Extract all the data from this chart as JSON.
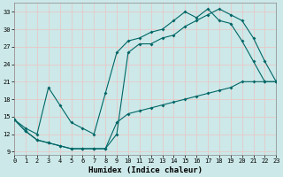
{
  "xlabel": "Humidex (Indice chaleur)",
  "bg_color": "#cce8e8",
  "line_color": "#006666",
  "grid_color": "#b8d8d8",
  "xlim": [
    0,
    23
  ],
  "ylim": [
    8.5,
    34.5
  ],
  "xticks": [
    0,
    1,
    2,
    3,
    4,
    5,
    6,
    7,
    8,
    9,
    10,
    11,
    12,
    13,
    14,
    15,
    16,
    17,
    18,
    19,
    20,
    21,
    22,
    23
  ],
  "yticks": [
    9,
    12,
    15,
    18,
    21,
    24,
    27,
    30,
    33
  ],
  "curve_high_x": [
    0,
    1,
    2,
    3,
    4,
    5,
    6,
    7,
    8,
    9,
    10,
    11,
    12,
    13,
    14,
    15,
    16,
    17,
    18,
    19,
    20,
    21,
    22,
    23
  ],
  "curve_high_y": [
    14.5,
    13.0,
    12.0,
    20.0,
    17.0,
    14.0,
    13.0,
    12.0,
    19.0,
    26.0,
    28.0,
    28.5,
    29.5,
    30.0,
    31.5,
    33.0,
    32.0,
    33.5,
    31.5,
    31.0,
    28.0,
    24.5,
    21.0,
    21.0
  ],
  "curve_mid_x": [
    0,
    1,
    2,
    3,
    4,
    5,
    6,
    7,
    8,
    9,
    10,
    11,
    12,
    13,
    14,
    15,
    16,
    17,
    18,
    19,
    20,
    21,
    22,
    23
  ],
  "curve_mid_y": [
    14.5,
    12.5,
    11.0,
    10.5,
    10.0,
    9.5,
    9.5,
    9.5,
    9.5,
    12.0,
    26.0,
    27.5,
    27.5,
    28.5,
    29.0,
    30.5,
    31.5,
    32.5,
    33.5,
    32.5,
    31.5,
    28.5,
    24.5,
    21.0
  ],
  "curve_low_x": [
    0,
    1,
    2,
    3,
    4,
    5,
    6,
    7,
    8,
    9,
    10,
    11,
    12,
    13,
    14,
    15,
    16,
    17,
    18,
    19,
    20,
    21,
    22,
    23
  ],
  "curve_low_y": [
    14.5,
    12.5,
    11.0,
    10.5,
    10.0,
    9.5,
    9.5,
    9.5,
    9.5,
    14.0,
    15.5,
    16.0,
    16.5,
    17.0,
    17.5,
    18.0,
    18.5,
    19.0,
    19.5,
    20.0,
    21.0,
    21.0,
    21.0,
    21.0
  ]
}
